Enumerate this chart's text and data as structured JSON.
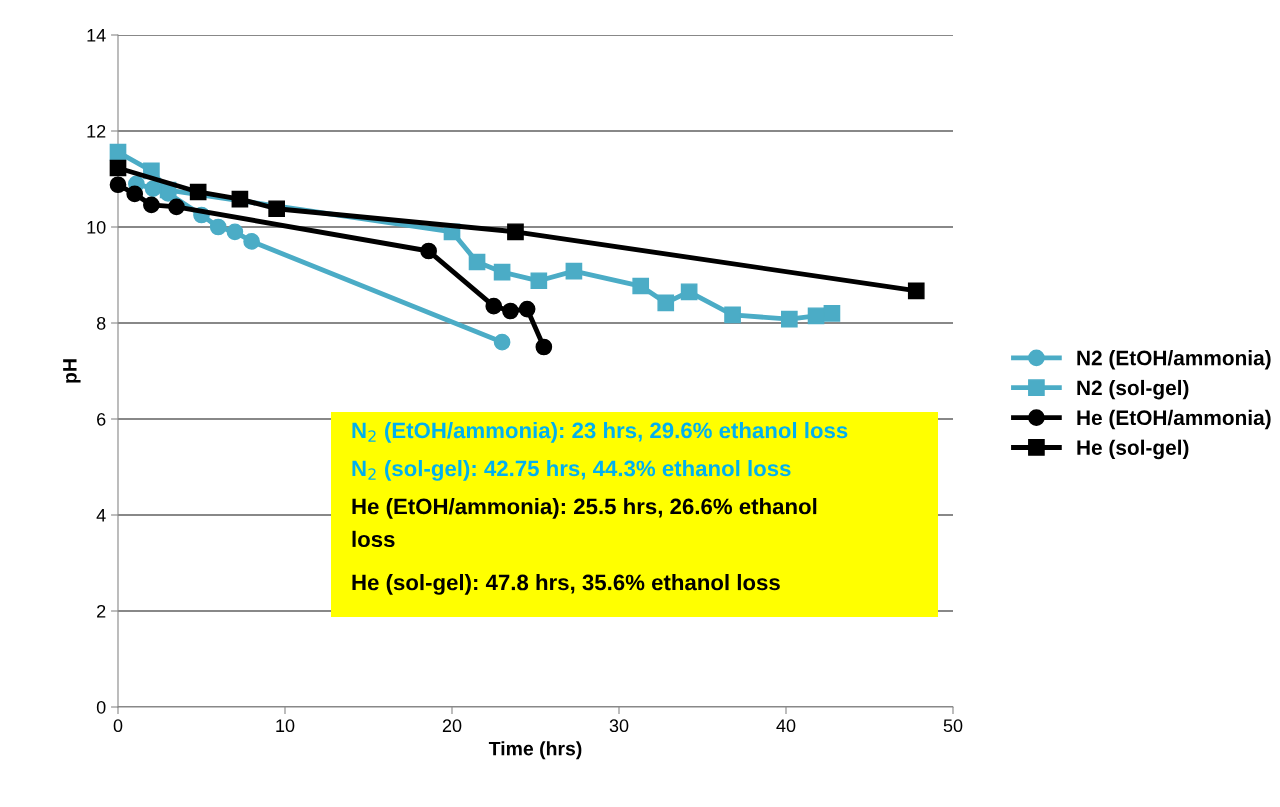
{
  "chart_data": {
    "type": "line",
    "xlabel": "Time (hrs)",
    "ylabel": "pH",
    "xlim": [
      0,
      50
    ],
    "xticks": [
      0,
      10,
      20,
      30,
      40,
      50
    ],
    "ylim": [
      0,
      14
    ],
    "yticks": [
      0,
      2,
      4,
      6,
      8,
      10,
      12,
      14
    ],
    "grid": "y",
    "legend": "right",
    "line_style": "solid",
    "series": [
      {
        "name": "N2 (EtOH/ammonia)",
        "color": "#4bacc6",
        "marker": "circle",
        "x": [
          1.1,
          2.1,
          3,
          5,
          6,
          7,
          8,
          23
        ],
        "values": [
          10.9,
          10.8,
          10.7,
          10.25,
          10.0,
          9.9,
          9.7,
          7.6
        ]
      },
      {
        "name": "N2 (sol-gel)",
        "color": "#4bacc6",
        "marker": "square",
        "x": [
          0,
          2,
          3,
          20,
          21.5,
          23,
          25.2,
          27.3,
          31.3,
          32.8,
          34.2,
          36.8,
          40.2,
          41.8,
          42.75
        ],
        "values": [
          11.56,
          11.17,
          10.77,
          9.9,
          9.27,
          9.06,
          8.88,
          9.08,
          8.77,
          8.42,
          8.65,
          8.17,
          8.08,
          8.15,
          8.2
        ]
      },
      {
        "name": "He (EtOH/ammonia)",
        "color": "#000000",
        "marker": "circle",
        "x": [
          0,
          1,
          2,
          3.5,
          18.6,
          22.5,
          23.5,
          24.5,
          25.5
        ],
        "values": [
          10.88,
          10.69,
          10.46,
          10.42,
          9.5,
          8.35,
          8.25,
          8.29,
          7.5
        ]
      },
      {
        "name": "He (sol-gel)",
        "color": "#000000",
        "marker": "square",
        "x": [
          0,
          4.8,
          7.3,
          9.5,
          23.8,
          47.8
        ],
        "values": [
          11.23,
          10.73,
          10.58,
          10.38,
          9.9,
          8.67
        ]
      }
    ],
    "annotations": [
      "N$_{2}$ (EtOH/ammonia): 23 hrs, 29.6% ethanol loss",
      "N$_{2}$ (sol-gel): 42.75 hrs, 44.3% ethanol loss",
      "He (EtOH/ammonia): 25.5 hrs, 26.6% ethanol\nloss",
      "He (sol-gel): 47.8 hrs, 35.6% ethanol loss"
    ]
  }
}
